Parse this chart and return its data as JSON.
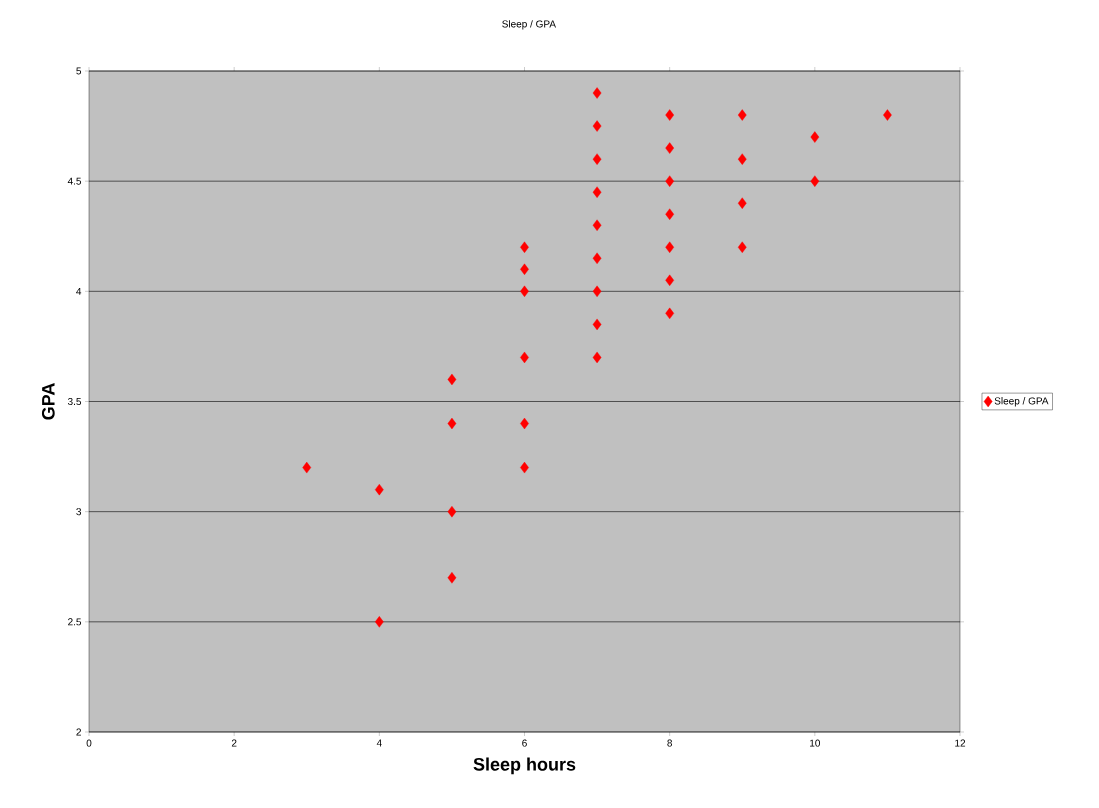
{
  "chart_data": {
    "type": "scatter",
    "title": "Sleep / GPA",
    "xlabel": "Sleep hours",
    "ylabel": "GPA",
    "xlim": [
      0,
      12
    ],
    "xticks": [
      0,
      2,
      4,
      6,
      8,
      10,
      12
    ],
    "ylim": [
      2,
      5
    ],
    "yticks": [
      2,
      2.5,
      3,
      3.5,
      4,
      4.5,
      5
    ],
    "grid": "y",
    "legend": "right",
    "marker": "diamond",
    "series": [
      {
        "name": "Sleep / GPA",
        "color": "#ff0000",
        "x": [
          3,
          4,
          4,
          5,
          5,
          5,
          5,
          6,
          6,
          6,
          6,
          6,
          6,
          7,
          7,
          7,
          7,
          7,
          7,
          7,
          7,
          7,
          8,
          8,
          8,
          8,
          8,
          8,
          8,
          9,
          9,
          9,
          9,
          10,
          10,
          11
        ],
        "values": [
          3.2,
          3.1,
          2.5,
          3.6,
          3.4,
          3.0,
          2.7,
          4.2,
          4.1,
          4.0,
          3.7,
          3.4,
          3.2,
          4.9,
          4.75,
          4.6,
          4.45,
          4.3,
          4.15,
          4.0,
          3.85,
          3.7,
          4.8,
          4.65,
          4.5,
          4.35,
          4.2,
          4.05,
          3.9,
          4.8,
          4.6,
          4.4,
          4.2,
          4.7,
          4.5,
          4.8
        ]
      }
    ]
  }
}
